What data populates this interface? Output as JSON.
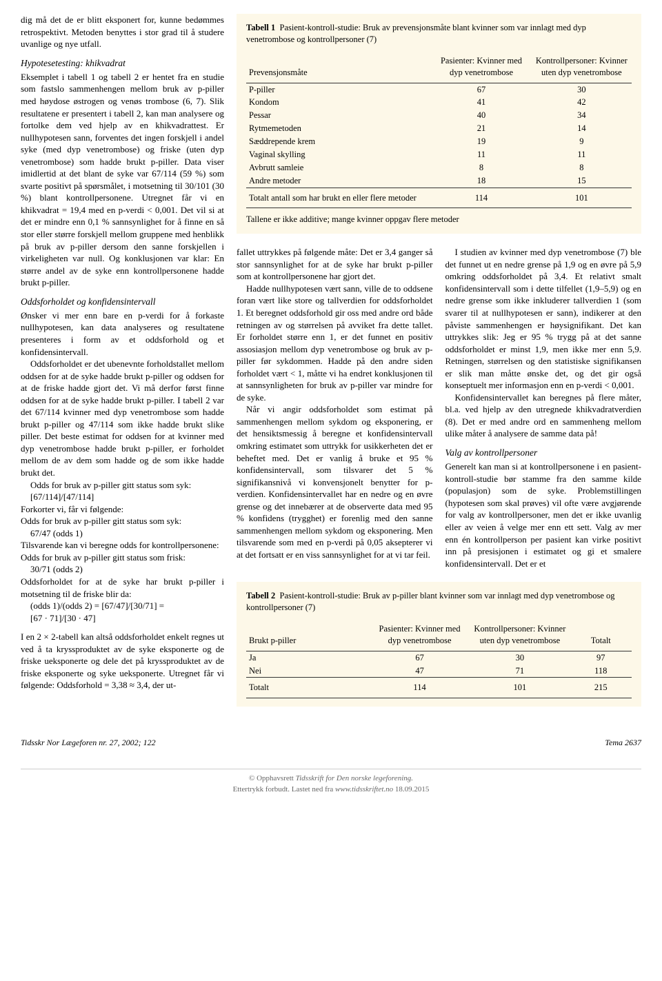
{
  "left_column": {
    "intro": "dig må det de er blitt eksponert for, kunne bedømmes retrospektivt. Metoden benyttes i stor grad til å studere uvanlige og nye utfall.",
    "section1_title": "Hypotesetesting: khikvadrat",
    "section1_p1": "Eksemplet i tabell 1 og tabell 2 er hentet fra en studie som fastslo sammenhengen mellom bruk av p-piller med høydose østrogen og venøs trombose (6, 7). Slik resultatene er presentert i tabell 2, kan man analysere og fortolke dem ved hjelp av en khikvadrattest. Er nullhypotesen sann, forventes det ingen forskjell i andel syke (med dyp venetrombose) og friske (uten dyp venetrombose) som hadde brukt p-piller. Data viser imidlertid at det blant de syke var 67/114 (59 %) som svarte positivt på spørsmålet, i motsetning til 30/101 (30 %) blant kontrollpersonene. Utregnet får vi en khikvadrat = 19,4 med en p-verdi < 0,001. Det vil si at det er mindre enn 0,1 % sannsynlighet for å finne en så stor eller større forskjell mellom gruppene med henblikk på bruk av p-piller dersom den sanne forskjellen i virkeligheten var null. Og konklusjonen var klar: En større andel av de syke enn kontrollpersonene hadde brukt p-piller.",
    "section2_title": "Oddsforholdet og konfidensintervall",
    "section2_p1": "Ønsker vi mer enn bare en p-verdi for å forkaste nullhypotesen, kan data analyseres og resultatene presenteres i form av et oddsforhold og et konfidensintervall.",
    "section2_p2": "Oddsforholdet er det ubenevnte forholdstallet mellom oddsen for at de syke hadde brukt p-piller og oddsen for at de friske hadde gjort det. Vi må derfor først finne oddsen for at de syke hadde brukt p-piller. I tabell 2 var det 67/114 kvinner med dyp venetrombose som hadde brukt p-piller og 47/114 som ikke hadde brukt slike piller. Det beste estimat for oddsen for at kvinner med dyp venetrombose hadde brukt p-piller, er forholdet mellom de av dem som hadde og de som ikke hadde brukt det.",
    "section2_p3": "Odds for bruk av p-piller gitt status som syk:",
    "section2_calc1": "[67/114]/[47/114]",
    "section2_p4": "Forkorter vi, får vi følgende:",
    "section2_p5": "Odds for bruk av p-piller gitt status som syk:",
    "section2_calc2": "67/47 (odds 1)",
    "section2_p6": "Tilsvarende kan vi beregne odds for kontrollpersonene:",
    "section2_p7": "Odds for bruk av p-piller gitt status som frisk:",
    "section2_calc3": "30/71 (odds 2)",
    "section2_p8": "Oddsforholdet for at de syke har brukt p-piller i motsetning til de friske blir da:",
    "section2_calc4": "(odds 1)/(odds 2) = [67/47]/[30/71] =",
    "section2_calc5": "[67 · 71]/[30 · 47]",
    "section2_p9": "I en 2 × 2-tabell kan altså oddsforholdet enkelt regnes ut ved å ta kryssproduktet av de syke eksponerte og de friske ueksponerte og dele det på kryssproduktet av de friske eksponerte og syke ueksponerte. Utregnet får vi følgende: Oddsforhold = 3,38 ≈ 3,4, der ut-"
  },
  "table1": {
    "caption_label": "Tabell 1",
    "caption_text": "Pasient-kontroll-studie: Bruk av prevensjonsmåte blant kvinner som var innlagt med dyp venetrombose og kontrollpersoner (7)",
    "col1": "Prevensjonsmåte",
    "col2": "Pasienter: Kvinner med dyp venetrombose",
    "col3": "Kontrollpersoner: Kvinner uten dyp venetrombose",
    "rows": [
      {
        "label": "P-piller",
        "v1": "67",
        "v2": "30"
      },
      {
        "label": "Kondom",
        "v1": "41",
        "v2": "42"
      },
      {
        "label": "Pessar",
        "v1": "40",
        "v2": "34"
      },
      {
        "label": "Rytmemetoden",
        "v1": "21",
        "v2": "14"
      },
      {
        "label": "Sæddrepende krem",
        "v1": "19",
        "v2": "9"
      },
      {
        "label": "Vaginal skylling",
        "v1": "11",
        "v2": "11"
      },
      {
        "label": "Avbrutt samleie",
        "v1": "8",
        "v2": "8"
      },
      {
        "label": "Andre metoder",
        "v1": "18",
        "v2": "15"
      }
    ],
    "total_label": "Totalt antall som har brukt en eller flere metoder",
    "total_v1": "114",
    "total_v2": "101",
    "footnote": "Tallene er ikke additive; mange kvinner oppgav flere metoder"
  },
  "middle_column": {
    "p1": "fallet uttrykkes på følgende måte: Det er 3,4 ganger så stor sannsynlighet for at de syke har brukt p-piller som at kontrollpersonene har gjort det.",
    "p2": "Hadde nullhypotesen vært sann, ville de to oddsene foran vært like store og tallverdien for oddsforholdet 1. Et beregnet oddsforhold gir oss med andre ord både retningen av og størrelsen på avviket fra dette tallet. Er forholdet større enn 1, er det funnet en positiv assosiasjon mellom dyp venetrombose og bruk av p-piller før sykdommen. Hadde på den andre siden forholdet vært < 1, måtte vi ha endret konklusjonen til at sannsynligheten for bruk av p-piller var mindre for de syke.",
    "p3": "Når vi angir oddsforholdet som estimat på sammenhengen mellom sykdom og eksponering, er det hensiktsmessig å beregne et konfidensintervall omkring estimatet som uttrykk for usikkerheten det er beheftet med. Det er vanlig å bruke et 95 % konfidensintervall, som tilsvarer det 5 % signifikansnivå vi konvensjonelt benytter for p-verdien. Konfidensintervallet har en nedre og en øvre grense og det innebærer at de observerte data med 95 % konfidens (trygghet) er forenlig med den sanne sammenhengen mellom sykdom og eksponering. Men tilsvarende som med en p-verdi på 0,05 aksepterer vi at det fortsatt er en viss sannsynlighet for at vi tar feil."
  },
  "right_column": {
    "p1": "I studien av kvinner med dyp venetrombose (7) ble det funnet ut en nedre grense på 1,9 og en øvre på 5,9 omkring oddsforholdet på 3,4. Et relativt smalt konfidensintervall som i dette tilfellet (1,9–5,9) og en nedre grense som ikke inkluderer tallverdien 1 (som svarer til at nullhypotesen er sann), indikerer at den påviste sammenhengen er høysignifikant. Det kan uttrykkes slik: Jeg er 95 % trygg på at det sanne oddsforholdet er minst 1,9, men ikke mer enn 5,9. Retningen, størrelsen og den statistiske signifikansen er slik man måtte ønske det, og det gir også konseptuelt mer informasjon enn en p-verdi < 0,001.",
    "p2": "Konfidensintervallet kan beregnes på flere måter, bl.a. ved hjelp av den utregnede khikvadratverdien (8). Det er med andre ord en sammenheng mellom ulike måter å analysere de samme data på!",
    "section_title": "Valg av kontrollpersoner",
    "p3": "Generelt kan man si at kontrollpersonene i en pasient-kontroll-studie bør stamme fra den samme kilde (populasjon) som de syke. Problemstillingen (hypotesen som skal prøves) vil ofte være avgjørende for valg av kontrollpersoner, men det er ikke uvanlig eller av veien å velge mer enn ett sett. Valg av mer enn én kontrollperson per pasient kan virke positivt inn på presisjonen i estimatet og gi et smalere konfidensintervall. Det er et"
  },
  "table2": {
    "caption_label": "Tabell 2",
    "caption_text": "Pasient-kontroll-studie: Bruk av p-piller blant kvinner som var innlagt med dyp venetrombose og kontrollpersoner (7)",
    "col1": "Brukt p-piller",
    "col2": "Pasienter: Kvinner med dyp venetrombose",
    "col3": "Kontrollpersoner: Kvinner uten dyp venetrombose",
    "col4": "Totalt",
    "rows": [
      {
        "label": "Ja",
        "v1": "67",
        "v2": "30",
        "v3": "97"
      },
      {
        "label": "Nei",
        "v1": "47",
        "v2": "71",
        "v3": "118"
      }
    ],
    "total_label": "Totalt",
    "total_v1": "114",
    "total_v2": "101",
    "total_v3": "215"
  },
  "footer": {
    "left": "Tidsskr Nor Lægeforen nr. 27, 2002; 122",
    "right_label": "Tema",
    "right_page": " 2637"
  },
  "copyright": {
    "line1a": "© Opphavsrett ",
    "line1b": "Tidsskrift for Den norske legeforening.",
    "line2a": "Ettertrykk forbudt. Lastet ned fra ",
    "line2b": "www.tidsskriftet.no",
    "line2c": " 18.09.2015"
  }
}
